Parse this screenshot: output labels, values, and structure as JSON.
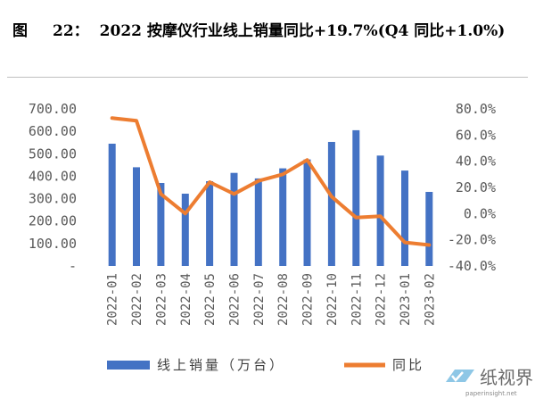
{
  "title": {
    "label": "图",
    "number": "22：",
    "text": "2022 按摩仪行业线上销量同比+19.7%(Q4 同比+1.0%)"
  },
  "chart_data": {
    "type": "bar+line",
    "categories": [
      "2022-01",
      "2022-02",
      "2022-03",
      "2022-04",
      "2022-05",
      "2022-06",
      "2022-07",
      "2022-08",
      "2022-09",
      "2022-10",
      "2022-11",
      "2022-12",
      "2023-01",
      "2023-02"
    ],
    "series": [
      {
        "name": "线上销量（万台）",
        "type": "bar",
        "axis": "left",
        "color": "#4472c4",
        "values": [
          545,
          440,
          370,
          322,
          378,
          415,
          390,
          435,
          475,
          553,
          605,
          492,
          425,
          330
        ]
      },
      {
        "name": "同比",
        "type": "line",
        "axis": "right",
        "color": "#ed7d31",
        "values": [
          73,
          71,
          15,
          0,
          24,
          15,
          25,
          30,
          41,
          13,
          -3,
          -2,
          -22,
          -24
        ]
      }
    ],
    "y_left": {
      "ticks": [
        "700.00",
        "600.00",
        "500.00",
        "400.00",
        "300.00",
        "200.00",
        "100.00",
        "-"
      ],
      "min": 0,
      "max": 700
    },
    "y_right": {
      "ticks": [
        "80.0%",
        "60.0%",
        "40.0%",
        "20.0%",
        "0.0%",
        "-20.0%",
        "-40.0%"
      ],
      "min": -40,
      "max": 80
    },
    "grid": false,
    "legend_position": "bottom"
  },
  "watermark": {
    "text": "纸视界",
    "url": "paperinsight.net"
  }
}
